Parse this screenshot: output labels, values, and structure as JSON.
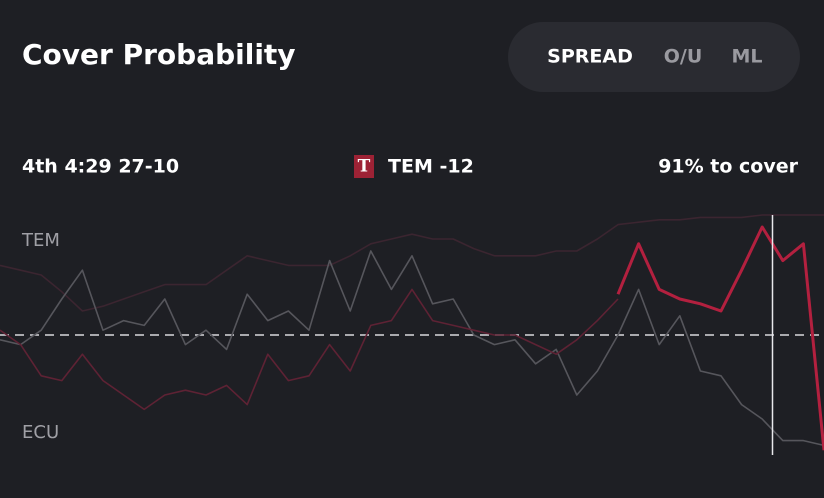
{
  "header": {
    "title": "Cover Probability"
  },
  "tabs": [
    "SPREAD",
    "O/U",
    "ML"
  ],
  "status": {
    "game_state": "4th 4:29 27-10",
    "logo": "T",
    "line": "TEM -12",
    "probability": "91% to cover"
  },
  "chart_data": {
    "type": "line",
    "annotations": [
      "TEM",
      "ECU"
    ],
    "x": [
      0,
      1,
      2,
      3,
      4,
      5,
      6,
      7,
      8,
      9,
      10,
      11,
      12,
      13,
      14,
      15,
      16,
      17,
      18,
      19,
      20,
      21,
      22,
      23,
      24,
      25,
      26,
      27,
      28,
      29,
      30,
      31,
      32,
      33,
      34,
      35,
      36,
      37,
      38,
      39,
      40
    ],
    "xlim": [
      0,
      40
    ],
    "ylim": [
      0,
      100
    ],
    "reference_y": 50,
    "cursor_x": 37.5,
    "series": [
      {
        "color": "#3b2530",
        "values": [
          79,
          77,
          75,
          68,
          60,
          62,
          65,
          68,
          71,
          71,
          71,
          77,
          83,
          81,
          79,
          79,
          79,
          83,
          88,
          90,
          92,
          90,
          90,
          86,
          83,
          83,
          83,
          85,
          85,
          90,
          96,
          97,
          98,
          98,
          99,
          99,
          99,
          100,
          100,
          100,
          100
        ]
      },
      {
        "color": "#56565c",
        "values": [
          48,
          46,
          52,
          65,
          77,
          52,
          56,
          54,
          65,
          46,
          52,
          44,
          67,
          56,
          60,
          52,
          81,
          60,
          85,
          69,
          83,
          63,
          65,
          50,
          46,
          48,
          38,
          44,
          25,
          35,
          50,
          69,
          46,
          58,
          35,
          33,
          21,
          15,
          6,
          6,
          4
        ]
      },
      {
        "color": "#5e2234",
        "values": [
          52,
          46,
          33,
          31,
          42,
          31,
          25,
          19,
          25,
          27,
          25,
          29,
          21,
          42,
          31,
          33,
          46,
          35,
          54,
          56,
          69,
          56,
          54,
          52,
          50,
          50,
          46,
          42,
          48,
          56,
          65,
          null,
          null,
          null,
          null,
          null,
          null,
          null,
          null,
          null,
          null
        ]
      },
      {
        "color": "#b3203f",
        "values": [
          null,
          null,
          null,
          null,
          null,
          null,
          null,
          null,
          null,
          null,
          null,
          null,
          null,
          null,
          null,
          null,
          null,
          null,
          null,
          null,
          null,
          null,
          null,
          null,
          null,
          null,
          null,
          null,
          null,
          null,
          67,
          88,
          69,
          65,
          63,
          60,
          77,
          95,
          81,
          88,
          2
        ]
      }
    ]
  }
}
